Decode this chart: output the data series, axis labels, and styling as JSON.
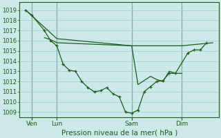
{
  "background_color": "#cce8e8",
  "grid_color": "#99cccc",
  "line_color": "#1a5c1a",
  "title": "Pression niveau de la mer( hPa )",
  "ylim": [
    1008.5,
    1019.8
  ],
  "xlim": [
    0,
    16
  ],
  "yticks": [
    1009,
    1010,
    1011,
    1012,
    1013,
    1014,
    1015,
    1016,
    1017,
    1018,
    1019
  ],
  "xtick_pos": [
    1,
    3,
    9,
    13
  ],
  "xtick_labels": [
    "Ven",
    "Lun",
    "Sam",
    "Dim"
  ],
  "vlines": [
    1,
    3,
    9,
    13
  ],
  "line1_x": [
    0.5,
    1.0,
    2.0,
    2.5,
    3.0,
    3.5,
    4.0,
    4.5,
    5.0,
    5.5,
    6.0,
    6.5,
    7.0,
    7.5,
    8.0,
    8.5,
    9.0,
    9.5,
    10.0,
    10.5,
    11.0,
    11.5,
    12.0,
    12.5,
    13.5,
    14.0,
    14.5,
    15.0
  ],
  "line1_y": [
    1019.0,
    1018.5,
    1017.0,
    1016.0,
    1015.5,
    1013.7,
    1013.1,
    1013.0,
    1012.0,
    1011.4,
    1011.0,
    1011.1,
    1011.4,
    1010.8,
    1010.5,
    1009.0,
    1008.9,
    1009.2,
    1011.0,
    1011.5,
    1012.0,
    1012.1,
    1012.8,
    1012.8,
    1014.8,
    1015.1,
    1015.1,
    1015.8
  ],
  "line2_x": [
    0.5,
    3.0,
    9.0,
    13.0,
    15.5
  ],
  "line2_y": [
    1019.0,
    1016.2,
    1015.5,
    1015.5,
    1015.8
  ],
  "line3_x": [
    2.0,
    2.5,
    3.0,
    9.0,
    9.5,
    10.5,
    11.0,
    11.5,
    12.0,
    12.5,
    13.0
  ],
  "line3_y": [
    1016.3,
    1016.1,
    1015.8,
    1015.5,
    1011.7,
    1012.5,
    1012.2,
    1012.0,
    1013.0,
    1012.8,
    1012.8
  ]
}
